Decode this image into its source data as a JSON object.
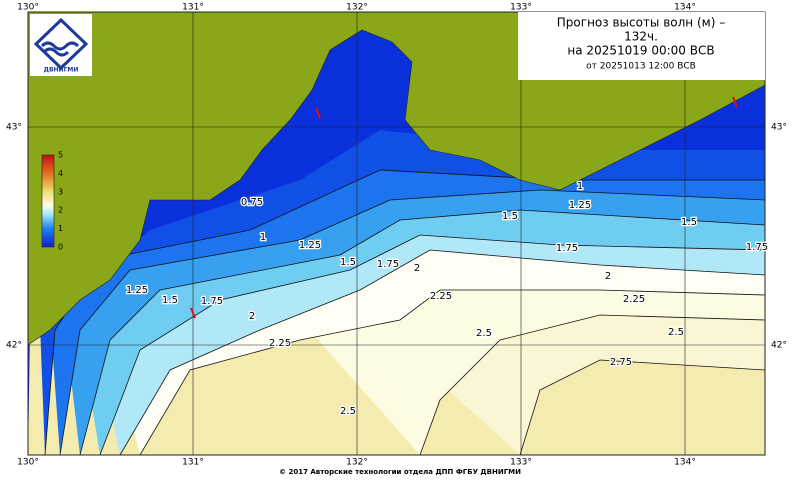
{
  "map": {
    "title_lines": [
      "Прогноз высоты волн (м) –",
      "132ч.",
      "на 20251019 00:00 ВСВ",
      "от 20251013 12:00 ВСВ"
    ],
    "logo_text": "ДВНИГМИ",
    "lon_labels": [
      "130°",
      "131°",
      "132°",
      "133°",
      "134°"
    ],
    "lat_labels": [
      "43°",
      "42°"
    ],
    "colorbar_labels": [
      0,
      1,
      2,
      3,
      4,
      5
    ],
    "contour_labels": [
      "0.75",
      "1",
      "1.25",
      "1.5",
      "1.75",
      "2",
      "1.25",
      "1.5",
      "1.75",
      "2",
      "2.25",
      "2.5",
      "2.25",
      "2.5",
      "2.75",
      "2",
      "2.25",
      "2.5",
      "1.75",
      "1.75",
      "1.5",
      "1.5",
      "1.25",
      "1"
    ],
    "footer": "© 2017 Авторские технологии отдела ДПП ФГБУ ДВНИГМИ"
  }
}
